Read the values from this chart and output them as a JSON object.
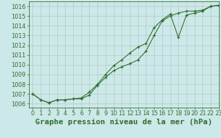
{
  "title": "Graphe pression niveau de la mer (hPa)",
  "bg_color": "#cde8e8",
  "grid_color": "#b0c8c8",
  "line_color": "#2d6e2d",
  "xlim": [
    -0.5,
    23
  ],
  "ylim": [
    1005.6,
    1016.5
  ],
  "xticks": [
    0,
    1,
    2,
    3,
    4,
    5,
    6,
    7,
    8,
    9,
    10,
    11,
    12,
    13,
    14,
    15,
    16,
    17,
    18,
    19,
    20,
    21,
    22,
    23
  ],
  "yticks": [
    1006,
    1007,
    1008,
    1009,
    1010,
    1011,
    1012,
    1013,
    1014,
    1015,
    1016
  ],
  "series1_x": [
    0,
    1,
    2,
    3,
    4,
    5,
    6,
    7,
    8,
    9,
    10,
    11,
    12,
    13,
    14,
    15,
    16,
    17,
    18,
    19,
    20,
    21,
    22,
    23
  ],
  "series1_y": [
    1007.0,
    1006.4,
    1006.1,
    1006.4,
    1006.4,
    1006.5,
    1006.5,
    1006.9,
    1007.9,
    1008.7,
    1009.4,
    1009.8,
    1010.1,
    1010.5,
    1011.4,
    1013.0,
    1014.5,
    1015.0,
    1015.3,
    1015.5,
    1015.5,
    1015.6,
    1016.0,
    1016.1
  ],
  "series2_x": [
    0,
    1,
    2,
    3,
    4,
    5,
    6,
    7,
    8,
    9,
    10,
    11,
    12,
    13,
    14,
    15,
    16,
    17,
    18,
    19,
    20,
    21,
    22,
    23
  ],
  "series2_y": [
    1007.0,
    1006.4,
    1006.1,
    1006.4,
    1006.4,
    1006.5,
    1006.6,
    1007.2,
    1008.0,
    1009.0,
    1009.9,
    1010.5,
    1011.2,
    1011.8,
    1012.2,
    1013.8,
    1014.6,
    1015.2,
    1012.8,
    1015.1,
    1015.3,
    1015.5,
    1016.0,
    1016.1
  ],
  "title_fontsize": 8,
  "tick_fontsize": 6,
  "title_color": "#2d6e2d"
}
